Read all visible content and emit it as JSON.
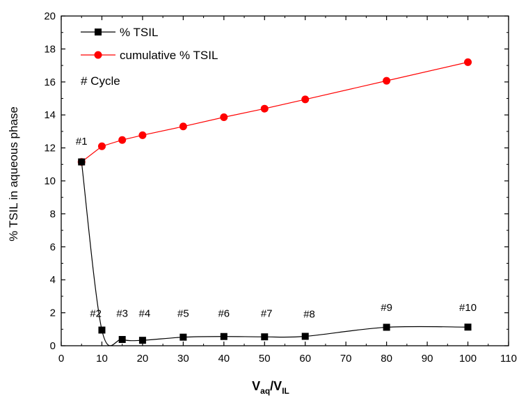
{
  "chart_data": {
    "type": "line",
    "xlabel": {
      "main": "V",
      "sub1": "aq",
      "slash": "/V",
      "sub2": "IL"
    },
    "ylabel": "% TSIL in aqueous phase",
    "xlim": [
      0,
      110
    ],
    "ylim": [
      0,
      20
    ],
    "xticks": [
      0,
      10,
      20,
      30,
      40,
      50,
      60,
      70,
      80,
      90,
      100,
      110
    ],
    "yticks": [
      0,
      2,
      4,
      6,
      8,
      10,
      12,
      14,
      16,
      18,
      20
    ],
    "grid": false,
    "legend_position": "top-left",
    "legend_note": "# Cycle",
    "series": [
      {
        "name": "% TSIL",
        "color": "#000000",
        "marker": "square",
        "smooth": true,
        "x": [
          5,
          10,
          15,
          20,
          30,
          40,
          50,
          60,
          80,
          100
        ],
        "y": [
          11.15,
          0.95,
          0.38,
          0.33,
          0.52,
          0.56,
          0.54,
          0.57,
          1.12,
          1.13
        ]
      },
      {
        "name": "cumulative % TSIL",
        "color": "#ff0000",
        "marker": "circle",
        "smooth": false,
        "x": [
          5,
          10,
          15,
          20,
          30,
          40,
          50,
          60,
          80,
          100
        ],
        "y": [
          11.15,
          12.1,
          12.48,
          12.77,
          13.3,
          13.86,
          14.38,
          14.94,
          16.07,
          17.2
        ]
      }
    ],
    "annotations": [
      {
        "text": "#1",
        "x": 5,
        "y": 12.2
      },
      {
        "text": "#2",
        "x": 8.5,
        "y": 1.75
      },
      {
        "text": "#3",
        "x": 15,
        "y": 1.75
      },
      {
        "text": "#4",
        "x": 20.5,
        "y": 1.75
      },
      {
        "text": "#5",
        "x": 30,
        "y": 1.75
      },
      {
        "text": "#6",
        "x": 40,
        "y": 1.75
      },
      {
        "text": "#7",
        "x": 50.5,
        "y": 1.75
      },
      {
        "text": "#8",
        "x": 61,
        "y": 1.7
      },
      {
        "text": "#9",
        "x": 80,
        "y": 2.1
      },
      {
        "text": "#10",
        "x": 100,
        "y": 2.1
      }
    ]
  }
}
